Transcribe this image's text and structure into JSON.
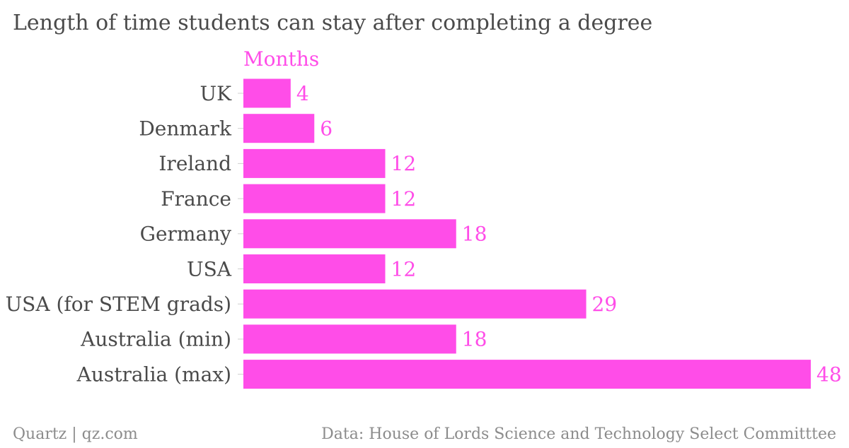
{
  "colors": {
    "bar": "#ff4de8",
    "text": "#4a4a4a",
    "label": "#ff4de8",
    "footer": "#8c8c8c",
    "tick": "#d0d0d0"
  },
  "chart_data": {
    "type": "bar",
    "orientation": "horizontal",
    "title": "Length of time students can stay after completing a degree",
    "unit_label": "Months",
    "categories": [
      "UK",
      "Denmark",
      "Ireland",
      "France",
      "Germany",
      "USA",
      "USA (for STEM grads)",
      "Australia (min)",
      "Australia (max)"
    ],
    "values": [
      4,
      6,
      12,
      12,
      18,
      12,
      29,
      18,
      48
    ],
    "xlim": [
      0,
      48
    ],
    "grid": false,
    "legend": "none"
  },
  "footer": {
    "source_left": "Quartz | qz.com",
    "source_right": "Data: House of Lords Science and Technology Select Committtee"
  }
}
